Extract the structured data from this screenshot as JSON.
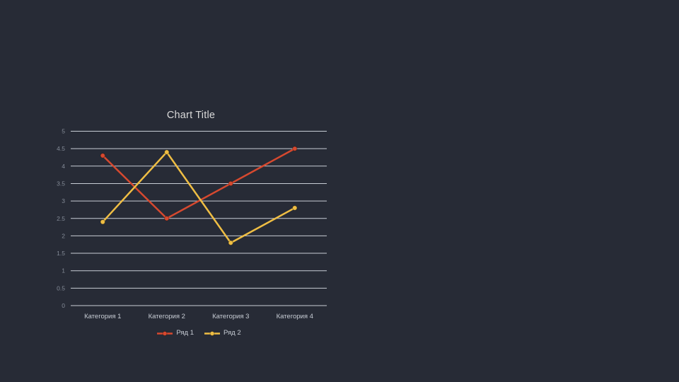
{
  "slide": {
    "background_color": "#272b36"
  },
  "chart_data": {
    "type": "line",
    "title": "Chart Title",
    "categories": [
      "Категория 1",
      "Категория 2",
      "Категория 3",
      "Категория 4"
    ],
    "series": [
      {
        "name": "Ряд 1",
        "values": [
          4.3,
          2.5,
          3.5,
          4.5
        ],
        "color": "#d6492f"
      },
      {
        "name": "Ряд 2",
        "values": [
          2.4,
          4.4,
          1.8,
          2.8
        ],
        "color": "#efbe44"
      }
    ],
    "xlabel": "",
    "ylabel": "",
    "ylim": [
      0,
      5
    ],
    "yticks": [
      0,
      0.5,
      1,
      1.5,
      2,
      2.5,
      3,
      3.5,
      4,
      4.5,
      5
    ],
    "grid": true,
    "legend_position": "bottom",
    "style": {
      "title_color": "#d9d9d9",
      "gridline_color": "#c8cdd5",
      "tick_label_color": "#848b97",
      "category_label_color": "#c7ccd4",
      "legend_label_color": "#c7ccd4",
      "marker_outline": "rgba(0,0,0,0.3)"
    }
  }
}
